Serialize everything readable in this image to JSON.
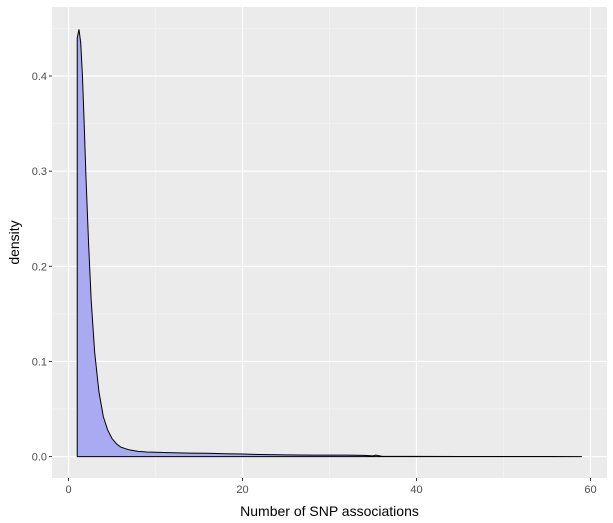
{
  "chart_data": {
    "type": "area",
    "title": "",
    "xlabel": "Number of SNP associations",
    "ylabel": "density",
    "xlim": [
      -1.9,
      61.9
    ],
    "ylim": [
      -0.0225,
      0.4725
    ],
    "x_ticks": [
      0,
      20,
      40,
      60
    ],
    "x_tick_labels": [
      "0",
      "20",
      "40",
      "60"
    ],
    "y_ticks": [
      0.0,
      0.1,
      0.2,
      0.3,
      0.4
    ],
    "y_tick_labels": [
      "0.0",
      "0.1",
      "0.2",
      "0.3",
      "0.4"
    ],
    "grid": true,
    "series": [
      {
        "fill": "#aaaaf2",
        "stroke": "#000000",
        "x": [
          1.0,
          1.2,
          1.4,
          1.6,
          1.8,
          2.0,
          2.3,
          2.6,
          3.0,
          3.5,
          4.0,
          4.5,
          5.0,
          5.5,
          6.0,
          7.0,
          8.0,
          9.0,
          10.0,
          12.0,
          14.0,
          16.0,
          18.0,
          20.0,
          22.0,
          25.0,
          28.0,
          30.0,
          32.0,
          34.0,
          35.0,
          35.3,
          36.0,
          40.0,
          45.0,
          50.0,
          55.0,
          59.0
        ],
        "y": [
          0.44,
          0.449,
          0.435,
          0.4,
          0.35,
          0.295,
          0.225,
          0.165,
          0.11,
          0.068,
          0.042,
          0.028,
          0.019,
          0.0135,
          0.01,
          0.007,
          0.0055,
          0.0048,
          0.0045,
          0.004,
          0.0037,
          0.0035,
          0.003,
          0.0027,
          0.0022,
          0.0018,
          0.0016,
          0.0016,
          0.0015,
          0.0013,
          0.0008,
          0.0015,
          0.0004,
          0.0002,
          0.0001,
          0.0001,
          0.0001,
          0.0
        ]
      }
    ],
    "colors": {
      "panel_background": "#ebebeb",
      "grid_major": "#ffffff",
      "grid_minor": "#f5f5f5",
      "fill": "#aaaaf2",
      "line": "#000000",
      "tick_text": "#4d4d4d",
      "tick_mark": "#333333"
    }
  }
}
